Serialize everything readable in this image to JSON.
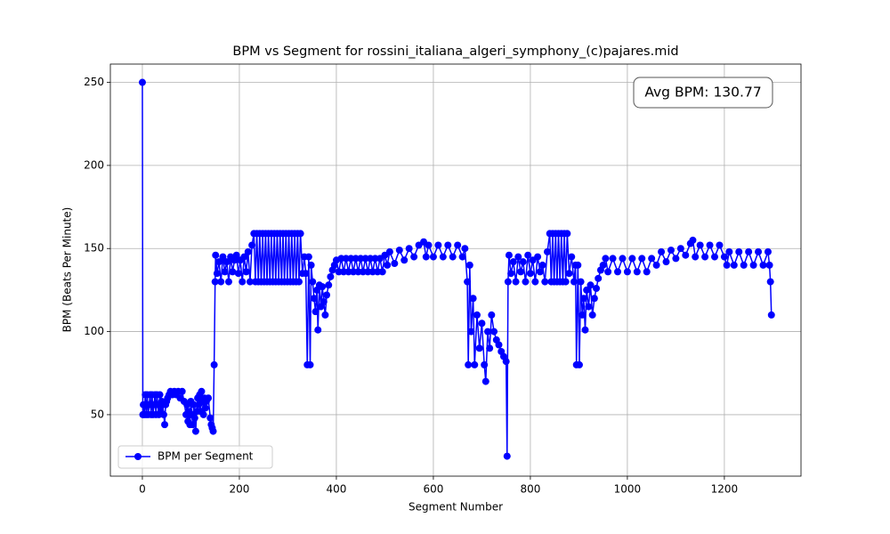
{
  "chart_data": {
    "type": "line",
    "title": "BPM vs Segment for rossini_italiana_algeri_symphony_(c)pajares.mid",
    "xlabel": "Segment Number",
    "ylabel": "BPM (Beats Per Minute)",
    "annotation": "Avg BPM: 130.77",
    "xlim": [
      -66,
      1358
    ],
    "ylim": [
      13,
      261
    ],
    "xticks": [
      0,
      200,
      400,
      600,
      800,
      1000,
      1200
    ],
    "yticks": [
      50,
      100,
      150,
      200,
      250
    ],
    "grid": true,
    "legend": "lower left",
    "x": [
      0,
      1,
      2,
      4,
      6,
      8,
      10,
      12,
      14,
      16,
      18,
      20,
      22,
      24,
      26,
      28,
      30,
      32,
      34,
      36,
      38,
      40,
      42,
      44,
      46,
      48,
      50,
      52,
      55,
      58,
      62,
      66,
      70,
      74,
      78,
      82,
      86,
      90,
      92,
      94,
      96,
      98,
      100,
      102,
      104,
      106,
      108,
      110,
      112,
      114,
      116,
      118,
      120,
      122,
      124,
      126,
      128,
      130,
      132,
      136,
      140,
      142,
      144,
      146,
      148,
      150,
      151,
      154,
      158,
      162,
      166,
      170,
      174,
      178,
      182,
      186,
      190,
      194,
      198,
      202,
      206,
      210,
      214,
      218,
      222,
      226,
      230,
      233,
      236,
      239,
      242,
      245,
      248,
      251,
      254,
      257,
      260,
      263,
      266,
      269,
      272,
      275,
      278,
      281,
      284,
      287,
      290,
      293,
      296,
      299,
      302,
      305,
      308,
      311,
      314,
      317,
      320,
      323,
      326,
      330,
      334,
      337,
      340,
      343,
      346,
      348,
      351,
      354,
      357,
      360,
      362,
      365,
      368,
      371,
      374,
      377,
      380,
      384,
      388,
      392,
      396,
      400,
      405,
      410,
      415,
      420,
      425,
      430,
      435,
      440,
      445,
      450,
      455,
      460,
      465,
      470,
      475,
      480,
      485,
      490,
      495,
      500,
      505,
      510,
      520,
      530,
      540,
      550,
      560,
      570,
      580,
      585,
      590,
      600,
      610,
      620,
      630,
      640,
      650,
      660,
      665,
      670,
      672,
      675,
      678,
      682,
      685,
      690,
      695,
      700,
      705,
      708,
      712,
      716,
      720,
      725,
      730,
      735,
      740,
      745,
      750,
      752,
      754,
      756,
      760,
      765,
      770,
      775,
      780,
      785,
      790,
      795,
      800,
      805,
      810,
      815,
      820,
      825,
      830,
      835,
      840,
      843,
      846,
      849,
      852,
      855,
      858,
      861,
      864,
      867,
      870,
      873,
      876,
      880,
      885,
      890,
      893,
      895,
      898,
      901,
      904,
      907,
      910,
      913,
      916,
      920,
      924,
      928,
      932,
      936,
      940,
      945,
      950,
      955,
      960,
      970,
      980,
      990,
      1000,
      1010,
      1020,
      1030,
      1040,
      1050,
      1060,
      1070,
      1080,
      1090,
      1100,
      1110,
      1120,
      1130,
      1135,
      1140,
      1150,
      1160,
      1170,
      1180,
      1190,
      1200,
      1205,
      1210,
      1220,
      1230,
      1240,
      1250,
      1260,
      1270,
      1280,
      1290,
      1293,
      1295,
      1297
    ],
    "series": [
      {
        "name": "BPM per Segment",
        "color": "#0000ff",
        "values": [
          250,
          50,
          56,
          50,
          62,
          50,
          62,
          50,
          56,
          62,
          50,
          62,
          50,
          56,
          62,
          50,
          62,
          56,
          50,
          62,
          52,
          58,
          56,
          50,
          44,
          56,
          58,
          60,
          62,
          64,
          62,
          64,
          62,
          64,
          60,
          64,
          58,
          50,
          56,
          46,
          52,
          44,
          58,
          50,
          44,
          56,
          48,
          40,
          52,
          60,
          56,
          62,
          52,
          64,
          58,
          50,
          60,
          54,
          58,
          60,
          48,
          44,
          42,
          40,
          80,
          130,
          146,
          135,
          142,
          130,
          145,
          136,
          142,
          130,
          145,
          136,
          143,
          146,
          135,
          143,
          130,
          145,
          136,
          148,
          130,
          152,
          159,
          130,
          159,
          130,
          159,
          130,
          159,
          130,
          159,
          130,
          159,
          130,
          159,
          130,
          159,
          130,
          159,
          130,
          159,
          130,
          159,
          130,
          159,
          130,
          159,
          130,
          159,
          130,
          159,
          130,
          159,
          130,
          159,
          135,
          145,
          135,
          80,
          145,
          80,
          140,
          130,
          120,
          112,
          125,
          101,
          128,
          115,
          127,
          118,
          110,
          122,
          128,
          133,
          137,
          140,
          143,
          136,
          144,
          136,
          144,
          136,
          144,
          136,
          144,
          136,
          144,
          136,
          144,
          136,
          144,
          136,
          144,
          136,
          144,
          136,
          146,
          140,
          148,
          141,
          149,
          143,
          150,
          145,
          152,
          154,
          145,
          152,
          145,
          152,
          145,
          152,
          145,
          152,
          145,
          150,
          130,
          80,
          140,
          100,
          120,
          80,
          110,
          90,
          105,
          80,
          70,
          100,
          90,
          110,
          100,
          95,
          92,
          88,
          85,
          82,
          25,
          130,
          146,
          135,
          142,
          130,
          145,
          136,
          142,
          130,
          146,
          135,
          143,
          130,
          145,
          136,
          140,
          130,
          148,
          159,
          130,
          159,
          130,
          159,
          130,
          159,
          130,
          159,
          130,
          159,
          130,
          159,
          135,
          145,
          130,
          140,
          80,
          140,
          80,
          130,
          110,
          120,
          101,
          125,
          115,
          128,
          110,
          120,
          126,
          132,
          137,
          140,
          144,
          136,
          144,
          136,
          144,
          136,
          144,
          136,
          144,
          136,
          144,
          140,
          148,
          142,
          149,
          144,
          150,
          146,
          153,
          155,
          145,
          152,
          145,
          152,
          145,
          152,
          145,
          140,
          148,
          140,
          148,
          140,
          148,
          140,
          148,
          140,
          148,
          140,
          130,
          110
        ]
      }
    ]
  }
}
